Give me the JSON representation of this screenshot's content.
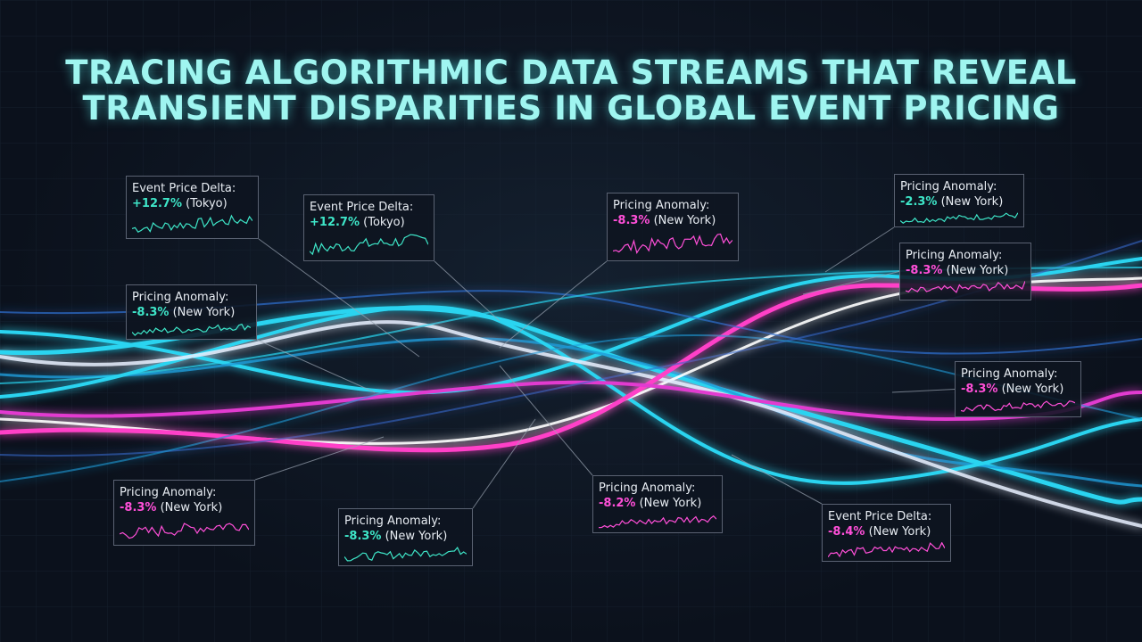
{
  "header": {
    "title_lines": [
      "TRACING ALGORITHMIC DATA STREAMS THAT REVEAL",
      "TRANSIENT DISPARITIES IN GLOBAL EVENT PRICING"
    ]
  },
  "callouts": [
    {
      "label": "Event Price Delta:",
      "value": "+12.7%",
      "location": "(Tokyo)",
      "color": "#3ee6c8"
    },
    {
      "label": "Event Price Delta:",
      "value": "+12.7%",
      "location": "(Tokyo)",
      "color": "#3ee6c8"
    },
    {
      "label": "Pricing Anomaly:",
      "value": "-8.3%",
      "location": "(New York)",
      "color": "#ff4fd8"
    },
    {
      "label": "Pricing Anomaly:",
      "value": "-2.3%",
      "location": "(New York)",
      "color": "#3ee6c8"
    },
    {
      "label": "Pricing Anomaly:",
      "value": "-8.3%",
      "location": "(New York)",
      "color": "#ff4fd8"
    },
    {
      "label": "Pricing Anomaly:",
      "value": "-8.3%",
      "location": "(New York)",
      "color": "#3ee6c8"
    },
    {
      "label": "Pricing Anomaly:",
      "value": "-8.3%",
      "location": "(New York)",
      "color": "#ff4fd8"
    },
    {
      "label": "Pricing Anomaly:",
      "value": "-8.3%",
      "location": "(New York)",
      "color": "#ff4fd8"
    },
    {
      "label": "Pricing Anomaly:",
      "value": "-8.3%",
      "location": "(New York)",
      "color": "#3ee6c8"
    },
    {
      "label": "Pricing Anomaly:",
      "value": "-8.2%",
      "location": "(New York)",
      "color": "#ff4fd8"
    },
    {
      "label": "Event Price Delta:",
      "value": "-8.4%",
      "location": "(New York)",
      "color": "#ff4fd8"
    }
  ]
}
